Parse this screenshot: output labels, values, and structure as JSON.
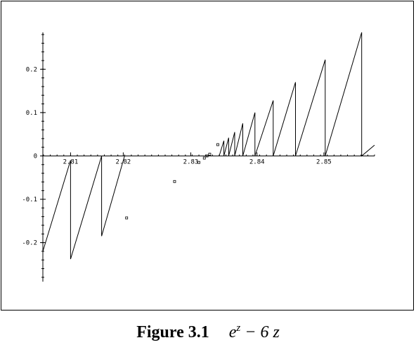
{
  "figure": {
    "label": "Figure 3.1",
    "formula": "e^z − 6 z",
    "formula_base": "e",
    "formula_exp": "z",
    "formula_rest": " − 6 z"
  },
  "chart_data": {
    "type": "line",
    "title": "",
    "xlabel": "",
    "ylabel": "",
    "xlim": [
      2.8106,
      2.8597
    ],
    "ylim": [
      -0.29,
      0.285
    ],
    "x_ticks": [
      {
        "value": 2.8147,
        "label": "2.81"
      },
      {
        "value": 2.8225,
        "label": "2.82"
      },
      {
        "value": 2.8325,
        "label": "2.83"
      },
      {
        "value": 2.8423,
        "label": "2.84"
      },
      {
        "value": 2.8522,
        "label": "2.85"
      }
    ],
    "y_ticks": [
      {
        "value": 0.2,
        "label": "0.2"
      },
      {
        "value": 0.1,
        "label": "0.1"
      },
      {
        "value": 0,
        "label": "0"
      },
      {
        "value": -0.1,
        "label": "-0.1"
      },
      {
        "value": -0.2,
        "label": "-0.2"
      }
    ],
    "series": [
      {
        "style": "line",
        "points": [
          [
            2.8106,
            -0.22
          ],
          [
            2.8147,
            -0.01
          ],
          [
            2.8147,
            -0.238
          ],
          [
            2.8193,
            0.0
          ],
          [
            2.8193,
            -0.185
          ],
          [
            2.8227,
            0.0
          ],
          [
            2.8367,
            0.0
          ],
          [
            2.8374,
            0.035
          ],
          [
            2.8374,
            0.0
          ],
          [
            2.8381,
            0.042
          ],
          [
            2.8381,
            0.0
          ],
          [
            2.839,
            0.055
          ],
          [
            2.839,
            0.0
          ],
          [
            2.8402,
            0.075
          ],
          [
            2.8402,
            0.0
          ],
          [
            2.842,
            0.1
          ],
          [
            2.842,
            0.0
          ],
          [
            2.8447,
            0.128
          ],
          [
            2.8447,
            0.0
          ],
          [
            2.848,
            0.17
          ],
          [
            2.848,
            0.0
          ],
          [
            2.8524,
            0.222
          ],
          [
            2.8524,
            0.0
          ],
          [
            2.8578,
            0.285
          ],
          [
            2.8578,
            0.0
          ],
          [
            2.8597,
            0.025
          ]
        ]
      },
      {
        "style": "markers",
        "points": [
          [
            2.823,
            -0.143
          ],
          [
            2.8301,
            -0.059
          ],
          [
            2.8337,
            -0.015
          ],
          [
            2.8345,
            -0.005
          ],
          [
            2.8349,
            0.0
          ],
          [
            2.8353,
            0.004
          ],
          [
            2.8365,
            0.026
          ]
        ]
      }
    ],
    "grid": false,
    "legend": "none"
  }
}
